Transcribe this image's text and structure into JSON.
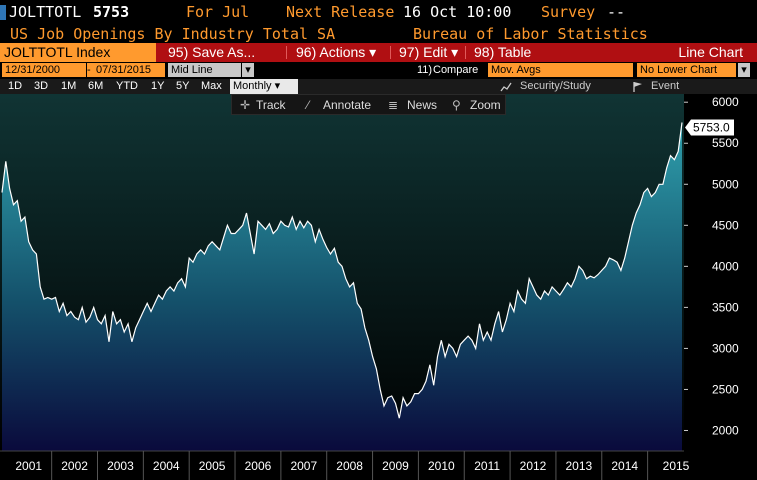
{
  "header": {
    "ticker": "JOLTTOTL",
    "value": "5753",
    "for_label": "For Jul",
    "next_release_label": "Next Release",
    "next_release_value": "16 Oct 10:00",
    "survey_label": "Survey",
    "survey_value": "--",
    "description": "US Job Openings By Industry Total SA",
    "source": "Bureau of Labor Statistics"
  },
  "toolbar": {
    "index_label": "JOLTTOTL Index",
    "save_label": "95) Save As...",
    "actions_label": "96) Actions ▾",
    "edit_label": "97) Edit ▾",
    "table_label": "98) Table",
    "chart_type_label": "Line Chart"
  },
  "options": {
    "start_date": "12/31/2000",
    "end_date": "07/31/2015",
    "dash": "-",
    "mode": "Mid Line",
    "mode_arrow": "▾",
    "compare_num": "11)",
    "compare_label": "Compare",
    "compare_value": "Mov. Avgs",
    "lower_chart": "No Lower Chart",
    "lower_arrow": "▾"
  },
  "ranges": {
    "d1": "1D",
    "d3": "3D",
    "m1": "1M",
    "m6": "6M",
    "ytd": "YTD",
    "y1": "1Y",
    "y5": "5Y",
    "max": "Max",
    "frequency": "Monthly ▾",
    "security_study": "Security/Study",
    "event": "Event"
  },
  "tools": {
    "track": "Track",
    "annotate": "Annotate",
    "news": "News",
    "zoom": "Zoom"
  },
  "chart_data": {
    "type": "area",
    "title": "US Job Openings By Industry Total SA",
    "x_start": "2000-12",
    "frequency": "monthly",
    "last_value_label": "5753.0",
    "ylim": [
      1750,
      6100
    ],
    "yticks": [
      2000,
      2500,
      3000,
      3500,
      4000,
      4500,
      5000,
      5500,
      6000
    ],
    "xticks": [
      "2001",
      "2002",
      "2003",
      "2004",
      "2005",
      "2006",
      "2007",
      "2008",
      "2009",
      "2010",
      "2011",
      "2012",
      "2013",
      "2014",
      "2015"
    ],
    "colors": {
      "line": "#ffffff",
      "fill_top": "#2e9aa8",
      "fill_bottom": "#0a0a3a",
      "bg_top": "#0c2a2a",
      "bg_bottom": "#000000"
    },
    "values": [
      4900,
      5280,
      4950,
      4750,
      4800,
      4550,
      4600,
      4300,
      4200,
      4150,
      3750,
      3600,
      3620,
      3600,
      3620,
      3450,
      3550,
      3400,
      3450,
      3380,
      3350,
      3500,
      3320,
      3380,
      3500,
      3350,
      3300,
      3400,
      3080,
      3450,
      3300,
      3350,
      3200,
      3300,
      3080,
      3250,
      3350,
      3450,
      3550,
      3450,
      3550,
      3650,
      3600,
      3700,
      3750,
      3700,
      3800,
      3850,
      3750,
      4100,
      4050,
      4150,
      4200,
      4150,
      4250,
      4300,
      4250,
      4200,
      4350,
      4500,
      4400,
      4400,
      4450,
      4500,
      4650,
      4400,
      4150,
      4550,
      4500,
      4450,
      4520,
      4400,
      4450,
      4550,
      4500,
      4480,
      4600,
      4450,
      4550,
      4470,
      4550,
      4500,
      4300,
      4450,
      4330,
      4230,
      4150,
      4220,
      4050,
      4000,
      3850,
      3750,
      3800,
      3550,
      3480,
      3250,
      3100,
      2900,
      2750,
      2500,
      2300,
      2400,
      2420,
      2330,
      2150,
      2400,
      2300,
      2350,
      2450,
      2450,
      2500,
      2600,
      2800,
      2550,
      2900,
      3100,
      2900,
      3050,
      3000,
      2900,
      3050,
      3100,
      3150,
      3100,
      3000,
      3300,
      3100,
      3200,
      3100,
      3300,
      3450,
      3200,
      3350,
      3550,
      3450,
      3700,
      3600,
      3550,
      3850,
      3750,
      3650,
      3600,
      3700,
      3650,
      3750,
      3700,
      3650,
      3720,
      3800,
      3750,
      3850,
      4000,
      3950,
      3850,
      3880,
      3860,
      3900,
      3950,
      4000,
      4100,
      4080,
      4050,
      3950,
      4100,
      4300,
      4500,
      4650,
      4750,
      4900,
      4950,
      4850,
      4900,
      5000,
      5000,
      5200,
      5350,
      5300,
      5400,
      5753
    ]
  }
}
